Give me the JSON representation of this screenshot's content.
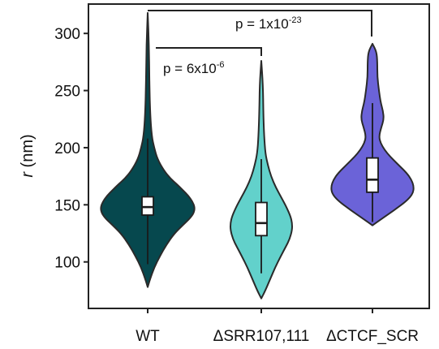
{
  "chart_data": {
    "type": "violin",
    "title": "",
    "xlabel": "",
    "ylabel": {
      "symbol": "r",
      "unit": " (nm)"
    },
    "ylim": [
      60,
      325
    ],
    "yticks": [
      100,
      150,
      200,
      250,
      300
    ],
    "ytick_labels": [
      "100",
      "150",
      "200",
      "250",
      "300"
    ],
    "grid": false,
    "categories": [
      "WT",
      "ΔSRR107,111",
      "ΔCTCF_SCR"
    ],
    "series": [
      {
        "category": "WT",
        "color": "#06484e",
        "min": 78,
        "max": 318,
        "q1": 141,
        "median": 148,
        "q3": 157,
        "whisker_low": 98,
        "whisker_high": 208,
        "density": [
          [
            78,
            0
          ],
          [
            85,
            3
          ],
          [
            95,
            8
          ],
          [
            105,
            15
          ],
          [
            115,
            23
          ],
          [
            125,
            33
          ],
          [
            132,
            43
          ],
          [
            138,
            52
          ],
          [
            143,
            57
          ],
          [
            148,
            58
          ],
          [
            153,
            55
          ],
          [
            158,
            50
          ],
          [
            163,
            43
          ],
          [
            168,
            36
          ],
          [
            173,
            28
          ],
          [
            180,
            20
          ],
          [
            190,
            12
          ],
          [
            200,
            8
          ],
          [
            210,
            5
          ],
          [
            230,
            3
          ],
          [
            260,
            2
          ],
          [
            290,
            1.5
          ],
          [
            318,
            0
          ]
        ]
      },
      {
        "category": "ΔSRR107,111",
        "color": "#62d1cb",
        "min": 68,
        "max": 276,
        "q1": 123,
        "median": 134,
        "q3": 152,
        "whisker_low": 90,
        "whisker_high": 190,
        "density": [
          [
            68,
            0
          ],
          [
            75,
            5
          ],
          [
            85,
            11
          ],
          [
            95,
            17
          ],
          [
            105,
            24
          ],
          [
            113,
            30
          ],
          [
            120,
            35
          ],
          [
            128,
            38
          ],
          [
            134,
            38
          ],
          [
            140,
            36
          ],
          [
            148,
            31
          ],
          [
            156,
            25
          ],
          [
            165,
            18
          ],
          [
            175,
            12
          ],
          [
            185,
            8
          ],
          [
            195,
            5
          ],
          [
            210,
            3.5
          ],
          [
            230,
            2.5
          ],
          [
            255,
            2
          ],
          [
            276,
            0
          ]
        ]
      },
      {
        "category": "ΔCTCF_SCR",
        "color": "#6b63d8",
        "min": 132,
        "max": 291,
        "q1": 161,
        "median": 172,
        "q3": 191,
        "whisker_low": 135,
        "whisker_high": 239,
        "density": [
          [
            132,
            0
          ],
          [
            136,
            8
          ],
          [
            142,
            20
          ],
          [
            148,
            32
          ],
          [
            154,
            43
          ],
          [
            160,
            50
          ],
          [
            166,
            51
          ],
          [
            172,
            48
          ],
          [
            178,
            42
          ],
          [
            185,
            32
          ],
          [
            192,
            22
          ],
          [
            198,
            15
          ],
          [
            204,
            10
          ],
          [
            210,
            8
          ],
          [
            218,
            11
          ],
          [
            225,
            14
          ],
          [
            232,
            13
          ],
          [
            240,
            10
          ],
          [
            250,
            8
          ],
          [
            262,
            6
          ],
          [
            275,
            6
          ],
          [
            284,
            5
          ],
          [
            291,
            0
          ]
        ]
      }
    ],
    "significance": [
      {
        "from": "WT",
        "to": "ΔSRR107,111",
        "text_base": "p = 6x10",
        "exponent": "-6"
      },
      {
        "from": "WT",
        "to": "ΔCTCF_SCR",
        "text_base": "p = 1x10",
        "exponent": "-23"
      }
    ]
  }
}
